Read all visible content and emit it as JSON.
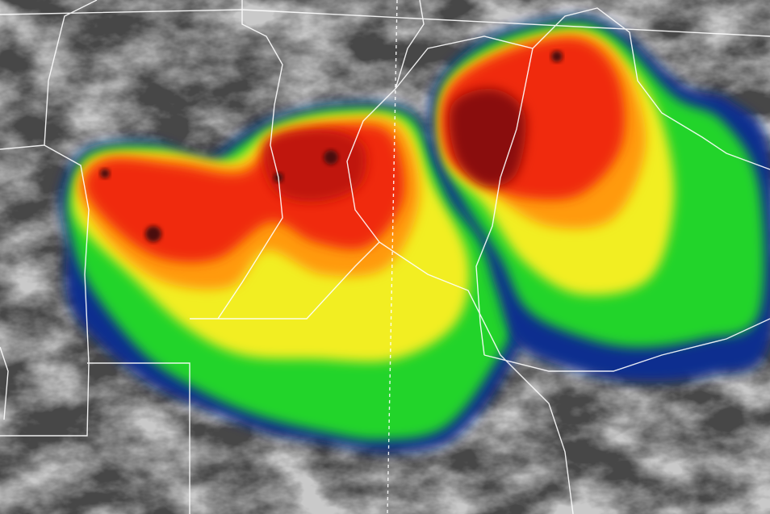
{
  "image": {
    "kind": "enhanced infrared satellite image",
    "palette": {
      "background_cloud_dark": "#3f3f3f",
      "background_cloud_light": "#d8d8d8",
      "cold_blue": "#0a2f8f",
      "cyan": "#28b8e8",
      "green": "#22d42a",
      "yellow": "#f2ee20",
      "orange": "#ff9a10",
      "red": "#f02a08",
      "dark_red": "#8a0808",
      "border_lines": "#ffffff"
    }
  }
}
